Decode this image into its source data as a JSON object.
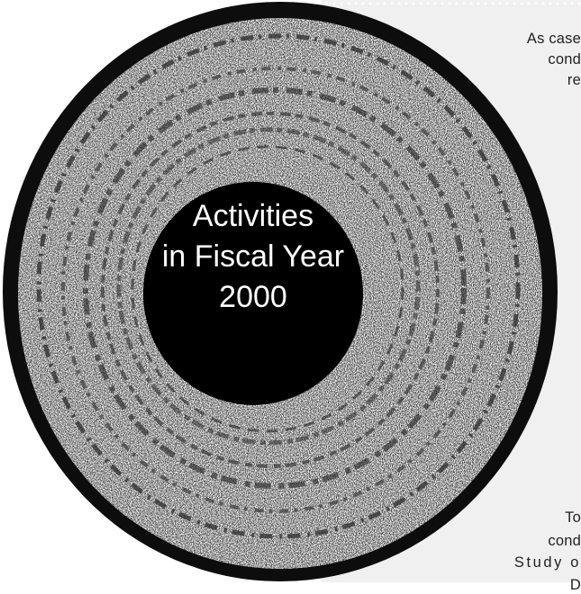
{
  "side_text": {
    "line1": "As case",
    "line2": "cond",
    "line3": "re",
    "line4": "To",
    "line5": "cond",
    "line6": "Study o",
    "line7": "D"
  },
  "title": {
    "line1": "Activities",
    "line2": "in Fiscal Year",
    "line3": "2000"
  },
  "colors": {
    "panel": "#f0f0f0",
    "disc": "#000000",
    "title_text": "#ffffff"
  }
}
